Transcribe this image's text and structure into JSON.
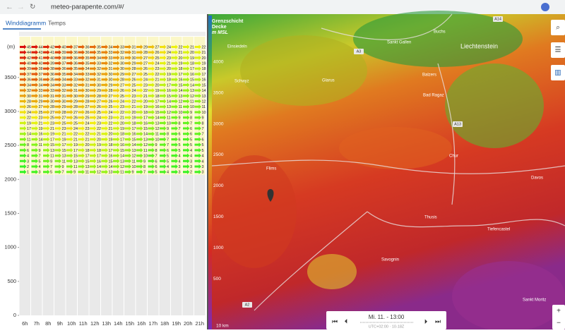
{
  "browser": {
    "url": "meteo-parapente.com/#/"
  },
  "tabs": [
    "Winddiagramm",
    "Temps"
  ],
  "chart_data": {
    "type": "wind-grid",
    "y_unit": "(m)",
    "categories": [
      "6h",
      "7h",
      "8h",
      "9h",
      "10h",
      "11h",
      "12h",
      "13h",
      "14h",
      "15h",
      "16h",
      "17h",
      "18h",
      "19h",
      "20h",
      "21h"
    ],
    "altitudes": [
      3950,
      3870,
      3790,
      3710,
      3630,
      3550,
      3470,
      3390,
      3310,
      3230,
      3150,
      3070,
      2990,
      2910,
      2830,
      2750,
      2670,
      2590,
      2510,
      2430,
      2350,
      2270,
      2190,
      2110
    ],
    "rows": [
      [
        45,
        44,
        42,
        40,
        37,
        36,
        35,
        34,
        33,
        31,
        29,
        27,
        24,
        22,
        21,
        22
      ],
      [
        44,
        43,
        41,
        39,
        36,
        36,
        35,
        33,
        32,
        31,
        28,
        26,
        24,
        21,
        20,
        21
      ],
      [
        42,
        41,
        40,
        38,
        36,
        35,
        34,
        33,
        31,
        30,
        27,
        25,
        23,
        20,
        19,
        20
      ],
      [
        40,
        40,
        39,
        37,
        36,
        35,
        33,
        32,
        30,
        29,
        27,
        24,
        21,
        19,
        18,
        19
      ],
      [
        39,
        38,
        38,
        36,
        35,
        34,
        32,
        31,
        30,
        28,
        26,
        23,
        20,
        18,
        17,
        18
      ],
      [
        37,
        37,
        36,
        35,
        34,
        33,
        32,
        30,
        29,
        27,
        25,
        22,
        19,
        17,
        16,
        17
      ],
      [
        36,
        36,
        35,
        34,
        33,
        32,
        31,
        30,
        28,
        26,
        24,
        21,
        18,
        16,
        15,
        16
      ],
      [
        34,
        34,
        34,
        33,
        32,
        31,
        30,
        29,
        27,
        25,
        23,
        20,
        17,
        15,
        14,
        15
      ],
      [
        32,
        33,
        33,
        32,
        31,
        30,
        29,
        28,
        26,
        24,
        22,
        19,
        16,
        14,
        13,
        14
      ],
      [
        30,
        31,
        31,
        31,
        30,
        29,
        28,
        27,
        25,
        23,
        21,
        18,
        15,
        13,
        12,
        13
      ],
      [
        28,
        29,
        30,
        30,
        29,
        28,
        27,
        26,
        24,
        22,
        20,
        17,
        14,
        12,
        11,
        12
      ],
      [
        26,
        27,
        28,
        29,
        28,
        27,
        26,
        25,
        23,
        21,
        19,
        16,
        13,
        11,
        10,
        11
      ],
      [
        24,
        25,
        27,
        28,
        27,
        26,
        25,
        24,
        22,
        20,
        18,
        15,
        12,
        10,
        9,
        10
      ],
      [
        22,
        23,
        25,
        27,
        26,
        25,
        24,
        23,
        21,
        19,
        17,
        14,
        11,
        9,
        8,
        9
      ],
      [
        19,
        21,
        23,
        25,
        25,
        24,
        23,
        22,
        20,
        18,
        16,
        13,
        10,
        8,
        7,
        8
      ],
      [
        17,
        19,
        21,
        23,
        24,
        23,
        22,
        21,
        19,
        17,
        15,
        12,
        9,
        7,
        6,
        7
      ],
      [
        14,
        16,
        19,
        21,
        22,
        22,
        21,
        20,
        18,
        16,
        14,
        11,
        8,
        6,
        6,
        7
      ],
      [
        11,
        14,
        17,
        19,
        21,
        21,
        20,
        19,
        17,
        15,
        13,
        10,
        7,
        6,
        5,
        6
      ],
      [
        8,
        11,
        15,
        17,
        19,
        20,
        19,
        18,
        16,
        14,
        12,
        9,
        7,
        5,
        5,
        5
      ],
      [
        6,
        9,
        13,
        15,
        17,
        18,
        18,
        17,
        15,
        13,
        11,
        8,
        6,
        5,
        4,
        5
      ],
      [
        4,
        7,
        11,
        13,
        15,
        17,
        17,
        16,
        14,
        12,
        10,
        7,
        5,
        4,
        4,
        4
      ],
      [
        3,
        5,
        9,
        11,
        13,
        15,
        16,
        15,
        13,
        11,
        9,
        6,
        5,
        4,
        3,
        4
      ],
      [
        2,
        4,
        7,
        9,
        11,
        13,
        14,
        14,
        12,
        10,
        8,
        6,
        4,
        3,
        3,
        3
      ],
      [
        1,
        3,
        5,
        7,
        9,
        11,
        12,
        13,
        11,
        9,
        7,
        5,
        4,
        3,
        2,
        3
      ]
    ],
    "ylim": [
      0,
      4100
    ],
    "yticks": [
      0,
      500,
      1000,
      1500,
      2000,
      2500,
      3000,
      3500
    ]
  },
  "map": {
    "layer_title": [
      "Grenzschicht",
      "Decke",
      "m MSL"
    ],
    "legend": {
      "lim": [
        0,
        4750
      ],
      "ticks": [
        500,
        1000,
        1500,
        2000,
        2500,
        3000,
        3500,
        4000
      ]
    },
    "places": [
      "Einsiedeln",
      "Sankt Gallen",
      "Liechtenstein",
      "Buchs",
      "Schwyz",
      "Glarus",
      "Balzers",
      "Bad Ragaz",
      "Chur",
      "Flims",
      "Davos",
      "Thusis",
      "Tiefencastel",
      "Savognin",
      "Sankt Moritz"
    ],
    "roads": [
      "A3",
      "A13",
      "A14",
      "A2"
    ],
    "scale": "10 km",
    "time": "Mi. 11. - 13:00",
    "timezone": "UTC+02:00 · 10-18Z"
  }
}
